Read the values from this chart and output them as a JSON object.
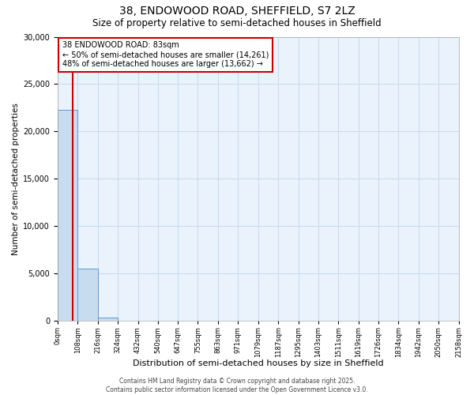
{
  "title_line1": "38, ENDOWOOD ROAD, SHEFFIELD, S7 2LZ",
  "title_line2": "Size of property relative to semi-detached houses in Sheffield",
  "xlabel": "Distribution of semi-detached houses by size in Sheffield",
  "ylabel": "Number of semi-detached properties",
  "property_size": 83,
  "annotation_text": "38 ENDOWOOD ROAD: 83sqm\n← 50% of semi-detached houses are smaller (14,261)\n48% of semi-detached houses are larger (13,662) →",
  "bin_edges": [
    0,
    108,
    216,
    324,
    432,
    540,
    647,
    755,
    863,
    971,
    1079,
    1187,
    1295,
    1403,
    1511,
    1619,
    1726,
    1834,
    1942,
    2050,
    2158
  ],
  "bar_values": [
    22300,
    5500,
    350,
    0,
    0,
    0,
    0,
    0,
    0,
    0,
    0,
    0,
    0,
    0,
    0,
    0,
    0,
    0,
    0,
    0
  ],
  "bar_color": "#c8dcf0",
  "bar_edge_color": "#5b9bd5",
  "grid_color": "#c8dcf0",
  "red_line_color": "#cc0000",
  "annotation_box_color": "#cc0000",
  "ylim": [
    0,
    30000
  ],
  "yticks": [
    0,
    5000,
    10000,
    15000,
    20000,
    25000,
    30000
  ],
  "footer_text": "Contains HM Land Registry data © Crown copyright and database right 2025.\nContains public sector information licensed under the Open Government Licence v3.0.",
  "background_color": "#ffffff",
  "plot_background_color": "#eaf3fb"
}
